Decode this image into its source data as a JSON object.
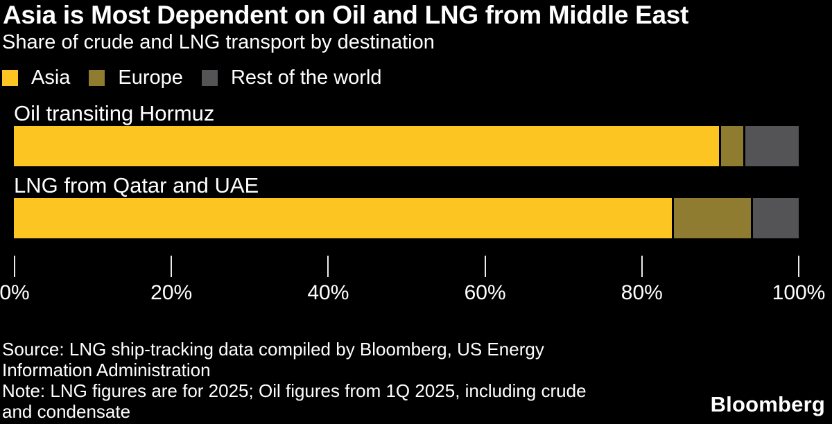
{
  "header": {
    "title": "Asia is Most Dependent on Oil and LNG from Middle East",
    "subtitle": "Share of crude and LNG transport by destination"
  },
  "chart_data": {
    "type": "bar",
    "orientation": "horizontal",
    "stacked": true,
    "unit": "%",
    "title": "Asia is Most Dependent on Oil and LNG from Middle East",
    "subtitle": "Share of crude and LNG transport by destination",
    "categories": [
      "Oil transiting Hormuz",
      "LNG from Qatar and UAE"
    ],
    "series": [
      {
        "name": "Asia",
        "color": "#FDC521",
        "values": [
          90,
          84
        ]
      },
      {
        "name": "Europe",
        "color": "#8F7C30",
        "values": [
          3,
          10
        ]
      },
      {
        "name": "Rest of the world",
        "color": "#545456",
        "values": [
          7,
          6
        ]
      }
    ],
    "x_ticks": [
      "0%",
      "20%",
      "40%",
      "60%",
      "80%",
      "100%"
    ],
    "x_range": [
      0,
      100
    ],
    "grid": false,
    "legend_position": "top-left",
    "background_color": "#000000",
    "text_color": "#ffffff"
  },
  "footer": {
    "source_lines": [
      "Source: LNG ship-tracking data compiled by Bloomberg, US Energy",
      "Information Administration"
    ],
    "note_lines": [
      "Note: LNG figures are for 2025; Oil figures from 1Q 2025, including crude",
      "and condensate"
    ],
    "logo": "Bloomberg"
  }
}
